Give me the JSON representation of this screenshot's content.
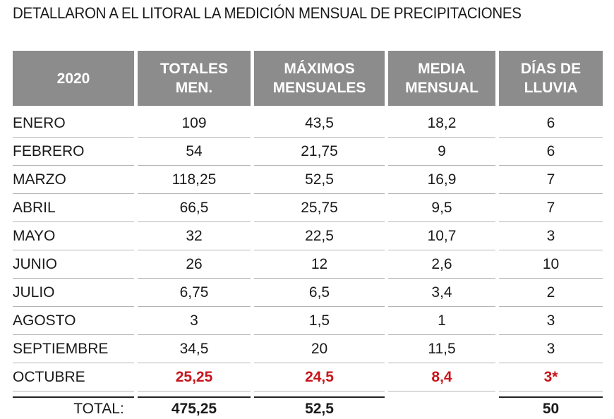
{
  "title": "DETALLARON A EL LITORAL LA MEDICIÓN MENSUAL DE PRECIPITACIONES",
  "table": {
    "header": [
      "2020",
      "TOTALES MEN.",
      "MÁXIMOS MENSUALES",
      "MEDIA MENSUAL",
      "DÍAS DE LLUVIA"
    ],
    "rows": [
      [
        "ENERO",
        "109",
        "43,5",
        "18,2",
        "6"
      ],
      [
        "FEBRERO",
        "54",
        "21,75",
        "9",
        "6"
      ],
      [
        "MARZO",
        "118,25",
        "52,5",
        "16,9",
        "7"
      ],
      [
        "ABRIL",
        "66,5",
        "25,75",
        "9,5",
        "7"
      ],
      [
        "MAYO",
        "32",
        "22,5",
        "10,7",
        "3"
      ],
      [
        "JUNIO",
        "26",
        "12",
        "2,6",
        "10"
      ],
      [
        "JULIO",
        "6,75",
        "6,5",
        "3,4",
        "2"
      ],
      [
        "AGOSTO",
        "3",
        "1,5",
        "1",
        "3"
      ],
      [
        "SEPTIEMBRE",
        "34,5",
        "20",
        "11,5",
        "3"
      ],
      [
        "OCTUBRE",
        "25,25",
        "24,5",
        "8,4",
        "3*"
      ]
    ],
    "total": {
      "label": "TOTAL:",
      "totales": "475,25",
      "maximos": "52,5",
      "dias": "50"
    }
  }
}
